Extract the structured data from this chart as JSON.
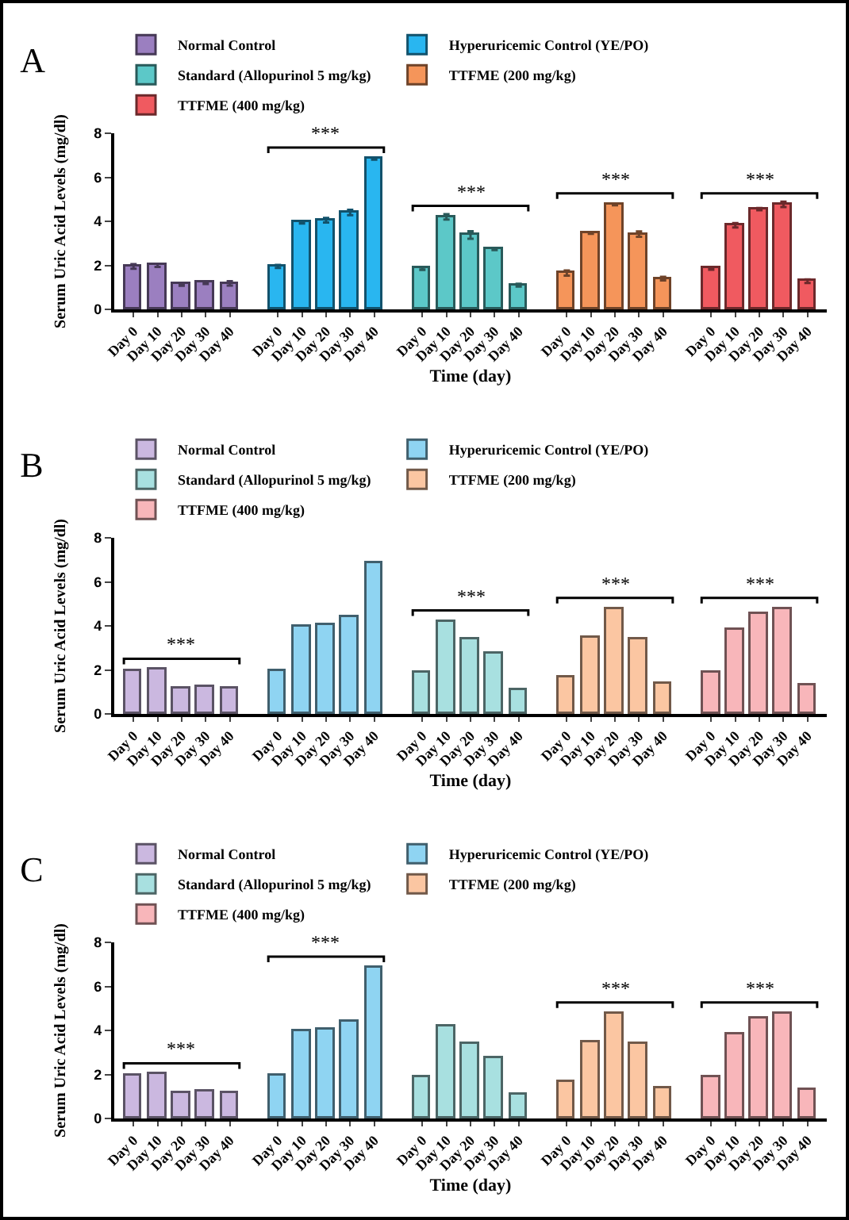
{
  "chart_data": [
    {
      "type": "bar",
      "title": "A",
      "xlabel": "Time (day)",
      "ylabel": "Serum Uric Acid Levels (mg/dl)",
      "categories": [
        "Day 0",
        "Day 10",
        "Day 20",
        "Day 30",
        "Day 40",
        "Day 0",
        "Day 10",
        "Day 20",
        "Day 30",
        "Day 40",
        "Day 0",
        "Day 10",
        "Day 20",
        "Day 30",
        "Day 40",
        "Day 0",
        "Day 10",
        "Day 20",
        "Day 30",
        "Day 40",
        "Day 0",
        "Day 10",
        "Day 20",
        "Day 30",
        "Day 40"
      ],
      "series": [
        {
          "name": "Normal Control",
          "color": "#9b7fc0",
          "values": [
            1.95,
            2.0,
            1.12,
            1.2,
            1.18,
            null,
            null,
            null,
            null,
            null,
            null,
            null,
            null,
            null,
            null,
            null,
            null,
            null,
            null,
            null,
            null,
            null,
            null,
            null,
            null
          ],
          "errors": [
            0.1,
            0.07,
            0.05,
            0.05,
            0.1,
            null,
            null,
            null,
            null,
            null,
            null,
            null,
            null,
            null,
            null,
            null,
            null,
            null,
            null,
            null,
            null,
            null,
            null,
            null,
            null
          ]
        },
        {
          "name": "Hyperuricemic Control (YE/PO)",
          "color": "#29b6f0",
          "values": [
            null,
            null,
            null,
            null,
            null,
            1.95,
            3.95,
            4.05,
            4.4,
            6.85,
            null,
            null,
            null,
            null,
            null,
            null,
            null,
            null,
            null,
            null,
            null,
            null,
            null,
            null,
            null
          ],
          "errors": [
            null,
            null,
            null,
            null,
            null,
            0.07,
            0.05,
            0.1,
            0.12,
            0.05,
            null,
            null,
            null,
            null,
            null,
            null,
            null,
            null,
            null,
            null,
            null,
            null,
            null,
            null,
            null
          ]
        },
        {
          "name": "Standard (Allopurinol 5 mg/kg)",
          "color": "#5cc8c8",
          "values": [
            null,
            null,
            null,
            null,
            null,
            null,
            null,
            null,
            null,
            null,
            1.85,
            4.2,
            3.38,
            2.72,
            1.1,
            null,
            null,
            null,
            null,
            null,
            null,
            null,
            null,
            null,
            null
          ],
          "errors": [
            null,
            null,
            null,
            null,
            null,
            null,
            null,
            null,
            null,
            null,
            0.06,
            0.12,
            0.17,
            0.03,
            0.06,
            null,
            null,
            null,
            null,
            null,
            null,
            null,
            null,
            null,
            null
          ]
        },
        {
          "name": "TTFME (200 mg/kg)",
          "color": "#f5955a",
          "values": [
            null,
            null,
            null,
            null,
            null,
            null,
            null,
            null,
            null,
            null,
            null,
            null,
            null,
            null,
            null,
            1.65,
            3.47,
            4.77,
            3.42,
            1.4,
            null,
            null,
            null,
            null,
            null
          ],
          "errors": [
            null,
            null,
            null,
            null,
            null,
            null,
            null,
            null,
            null,
            null,
            null,
            null,
            null,
            null,
            null,
            0.12,
            0.04,
            0.04,
            0.12,
            0.08,
            null,
            null,
            null,
            null,
            null
          ]
        },
        {
          "name": "TTFME (400 mg/kg)",
          "color": "#f05a60",
          "values": [
            null,
            null,
            null,
            null,
            null,
            null,
            null,
            null,
            null,
            null,
            null,
            null,
            null,
            null,
            null,
            null,
            null,
            null,
            null,
            null,
            1.85,
            3.82,
            4.55,
            4.77,
            1.28
          ],
          "errors": [
            null,
            null,
            null,
            null,
            null,
            null,
            null,
            null,
            null,
            null,
            null,
            null,
            null,
            null,
            null,
            null,
            null,
            null,
            null,
            null,
            0.05,
            0.1,
            0.05,
            0.12,
            0.08
          ]
        }
      ],
      "ylim": [
        0,
        8
      ],
      "yticks": [
        0,
        2,
        4,
        6,
        8
      ],
      "legend": "top",
      "annotations": [
        "***",
        "***",
        "***",
        "***"
      ]
    },
    {
      "type": "bar",
      "title": "B",
      "xlabel": "Time (day)",
      "ylabel": "Serum Uric Acid Levels (mg/dl)",
      "categories": [
        "Day 0",
        "Day 10",
        "Day 20",
        "Day 30",
        "Day 40",
        "Day 0",
        "Day 10",
        "Day 20",
        "Day 30",
        "Day 40",
        "Day 0",
        "Day 10",
        "Day 20",
        "Day 30",
        "Day 40",
        "Day 0",
        "Day 10",
        "Day 20",
        "Day 30",
        "Day 40",
        "Day 0",
        "Day 10",
        "Day 20",
        "Day 30",
        "Day 40"
      ],
      "series": [
        {
          "name": "Normal Control",
          "color": "#cbb8e0",
          "values": [
            1.95,
            2.0,
            1.12,
            1.2,
            1.18,
            null,
            null,
            null,
            null,
            null,
            null,
            null,
            null,
            null,
            null,
            null,
            null,
            null,
            null,
            null,
            null,
            null,
            null,
            null,
            null
          ]
        },
        {
          "name": "Hyperuricemic Control (YE/PO)",
          "color": "#8fd4f2",
          "values": [
            null,
            null,
            null,
            null,
            null,
            1.95,
            3.95,
            4.05,
            4.4,
            6.85,
            null,
            null,
            null,
            null,
            null,
            null,
            null,
            null,
            null,
            null,
            null,
            null,
            null,
            null,
            null
          ]
        },
        {
          "name": "Standard (Allopurinol 5 mg/kg)",
          "color": "#a8e0e0",
          "values": [
            null,
            null,
            null,
            null,
            null,
            null,
            null,
            null,
            null,
            null,
            1.85,
            4.2,
            3.38,
            2.72,
            1.1,
            null,
            null,
            null,
            null,
            null,
            null,
            null,
            null,
            null,
            null
          ]
        },
        {
          "name": "TTFME (200 mg/kg)",
          "color": "#fbc6a2",
          "values": [
            null,
            null,
            null,
            null,
            null,
            null,
            null,
            null,
            null,
            null,
            null,
            null,
            null,
            null,
            null,
            1.65,
            3.47,
            4.77,
            3.42,
            1.4,
            null,
            null,
            null,
            null,
            null
          ]
        },
        {
          "name": "TTFME (400 mg/kg)",
          "color": "#f8b6ba",
          "values": [
            null,
            null,
            null,
            null,
            null,
            null,
            null,
            null,
            null,
            null,
            null,
            null,
            null,
            null,
            null,
            null,
            null,
            null,
            null,
            null,
            1.85,
            3.82,
            4.55,
            4.77,
            1.28
          ]
        }
      ],
      "ylim": [
        0,
        8
      ],
      "yticks": [
        0,
        2,
        4,
        6,
        8
      ],
      "legend": "top",
      "annotations": [
        "***",
        "***",
        "***",
        "***"
      ]
    },
    {
      "type": "bar",
      "title": "C",
      "xlabel": "Time (day)",
      "ylabel": "Serum Uric Acid Levels (mg/dl)",
      "categories": [
        "Day 0",
        "Day 10",
        "Day 20",
        "Day 30",
        "Day 40",
        "Day 0",
        "Day 10",
        "Day 20",
        "Day 30",
        "Day 40",
        "Day 0",
        "Day 10",
        "Day 20",
        "Day 30",
        "Day 40",
        "Day 0",
        "Day 10",
        "Day 20",
        "Day 30",
        "Day 40",
        "Day 0",
        "Day 10",
        "Day 20",
        "Day 30",
        "Day 40"
      ],
      "series": [
        {
          "name": "Normal Control",
          "color": "#cbb8e0",
          "values": [
            1.95,
            2.0,
            1.12,
            1.2,
            1.18,
            null,
            null,
            null,
            null,
            null,
            null,
            null,
            null,
            null,
            null,
            null,
            null,
            null,
            null,
            null,
            null,
            null,
            null,
            null,
            null
          ]
        },
        {
          "name": "Hyperuricemic Control (YE/PO)",
          "color": "#8fd4f2",
          "values": [
            null,
            null,
            null,
            null,
            null,
            1.95,
            3.95,
            4.05,
            4.4,
            6.85,
            null,
            null,
            null,
            null,
            null,
            null,
            null,
            null,
            null,
            null,
            null,
            null,
            null,
            null,
            null
          ]
        },
        {
          "name": "Standard (Allopurinol 5 mg/kg)",
          "color": "#a8e0e0",
          "values": [
            null,
            null,
            null,
            null,
            null,
            null,
            null,
            null,
            null,
            null,
            1.85,
            4.2,
            3.38,
            2.72,
            1.1,
            null,
            null,
            null,
            null,
            null,
            null,
            null,
            null,
            null,
            null
          ]
        },
        {
          "name": "TTFME (200 mg/kg)",
          "color": "#fbc6a2",
          "values": [
            null,
            null,
            null,
            null,
            null,
            null,
            null,
            null,
            null,
            null,
            null,
            null,
            null,
            null,
            null,
            1.65,
            3.47,
            4.77,
            3.42,
            1.4,
            null,
            null,
            null,
            null,
            null
          ]
        },
        {
          "name": "TTFME (400 mg/kg)",
          "color": "#f8b6ba",
          "values": [
            null,
            null,
            null,
            null,
            null,
            null,
            null,
            null,
            null,
            null,
            null,
            null,
            null,
            null,
            null,
            null,
            null,
            null,
            null,
            null,
            1.85,
            3.82,
            4.55,
            4.77,
            1.28
          ]
        }
      ],
      "ylim": [
        0,
        8
      ],
      "yticks": [
        0,
        2,
        4,
        6,
        8
      ],
      "legend": "top",
      "annotations": [
        "***",
        "***",
        "***",
        "***"
      ]
    }
  ]
}
